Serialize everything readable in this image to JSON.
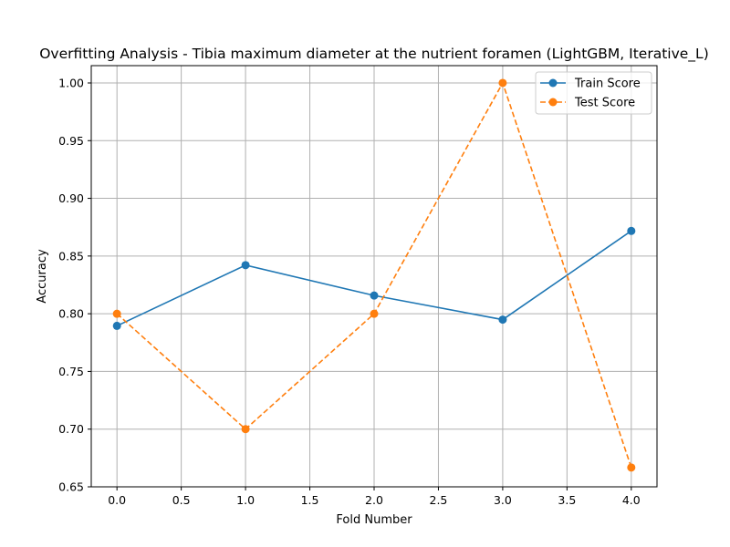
{
  "chart_data": {
    "type": "line",
    "title": "Overfitting Analysis - Tibia maximum diameter at the nutrient foramen (LightGBM, Iterative_L)",
    "xlabel": "Fold Number",
    "ylabel": "Accuracy",
    "x": [
      0,
      1,
      2,
      3,
      4
    ],
    "xlim": [
      -0.2,
      4.2
    ],
    "ylim": [
      0.65,
      1.015
    ],
    "xticks": [
      0.0,
      0.5,
      1.0,
      1.5,
      2.0,
      2.5,
      3.0,
      3.5,
      4.0
    ],
    "xtick_labels": [
      "0.0",
      "0.5",
      "1.0",
      "1.5",
      "2.0",
      "2.5",
      "3.0",
      "3.5",
      "4.0"
    ],
    "yticks": [
      0.65,
      0.7,
      0.75,
      0.8,
      0.85,
      0.9,
      0.95,
      1.0
    ],
    "ytick_labels": [
      "0.65",
      "0.70",
      "0.75",
      "0.80",
      "0.85",
      "0.90",
      "0.95",
      "1.00"
    ],
    "grid": true,
    "legend_position": "top-right",
    "series": [
      {
        "name": "Train Score",
        "values": [
          0.7895,
          0.8421,
          0.8158,
          0.7949,
          0.8718
        ],
        "color": "#1f77b4",
        "line_style": "solid",
        "marker": "circle"
      },
      {
        "name": "Test Score",
        "values": [
          0.8,
          0.7,
          0.8,
          1.0,
          0.6667
        ],
        "color": "#ff7f0e",
        "line_style": "dashed",
        "marker": "circle"
      }
    ]
  }
}
